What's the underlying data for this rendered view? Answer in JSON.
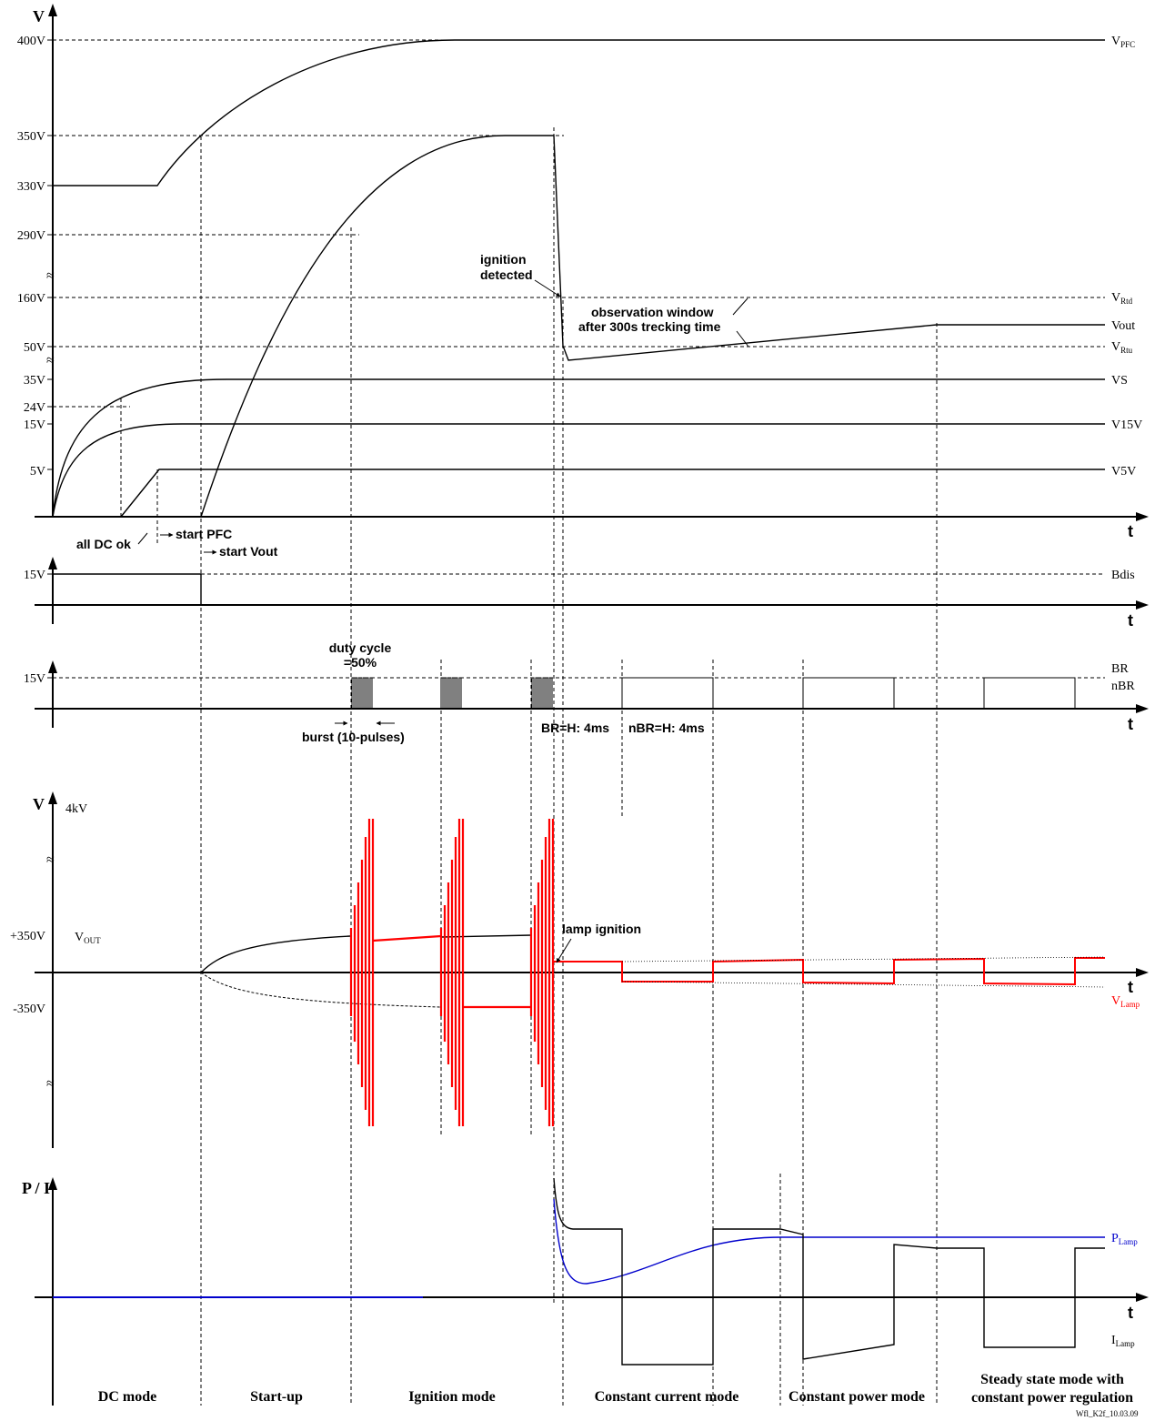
{
  "panel1": {
    "axis_v": "V",
    "axis_t": "t",
    "y_ticks": [
      "400V",
      "350V",
      "330V",
      "290V",
      "160V",
      "50V",
      "35V",
      "24V",
      "15V",
      "5V"
    ],
    "signals": [
      {
        "main": "V",
        "sub": "PFC"
      },
      {
        "main": "V",
        "sub": "Rtd"
      },
      {
        "main": "Vout",
        "sub": ""
      },
      {
        "main": "V",
        "sub": "Rtu"
      },
      {
        "main": "VS",
        "sub": ""
      },
      {
        "main": "V15V",
        "sub": ""
      },
      {
        "main": "V5V",
        "sub": ""
      }
    ],
    "ignition_detected": [
      "ignition",
      "detected"
    ],
    "observation": [
      "observation window",
      "after 300s trecking time"
    ],
    "all_dc_ok": "all DC ok",
    "start_pfc": "start PFC",
    "start_vout": "start Vout"
  },
  "panel2": {
    "y_tick": "15V",
    "signal": "Bdis",
    "axis_t": "t"
  },
  "panel3": {
    "y_tick": "15V",
    "signals": [
      "BR",
      "nBR"
    ],
    "axis_t": "t",
    "duty": [
      "duty cycle",
      "=50%"
    ],
    "burst": "burst (10-pulses)",
    "br_h": "BR=H: 4ms",
    "nbr_h": "nBR=H: 4ms"
  },
  "panel4": {
    "axis_v": "V",
    "top_tick": "4kV",
    "pos_tick": "+350V",
    "neg_tick": "-350V",
    "vout": {
      "main": "V",
      "sub": "OUT"
    },
    "lamp_ignition": "lamp ignition",
    "vlamp": {
      "main": "V",
      "sub": "Lamp"
    },
    "axis_t": "t",
    "lamp_color": "#ff0000"
  },
  "panel5": {
    "axis_pi": "P / I",
    "axis_t": "t",
    "plamp": {
      "main": "P",
      "sub": "Lamp"
    },
    "ilamp": {
      "main": "I",
      "sub": "Lamp"
    },
    "plamp_color": "#0000cc"
  },
  "modes": [
    {
      "lines": [
        "DC mode"
      ]
    },
    {
      "lines": [
        "Start-up"
      ]
    },
    {
      "lines": [
        "Ignition mode"
      ]
    },
    {
      "lines": [
        "Constant current mode"
      ]
    },
    {
      "lines": [
        "Constant power mode"
      ]
    },
    {
      "lines": [
        "Steady state mode with",
        "constant power regulation"
      ]
    }
  ],
  "footer": "Wfl_K2f_10.03.09"
}
